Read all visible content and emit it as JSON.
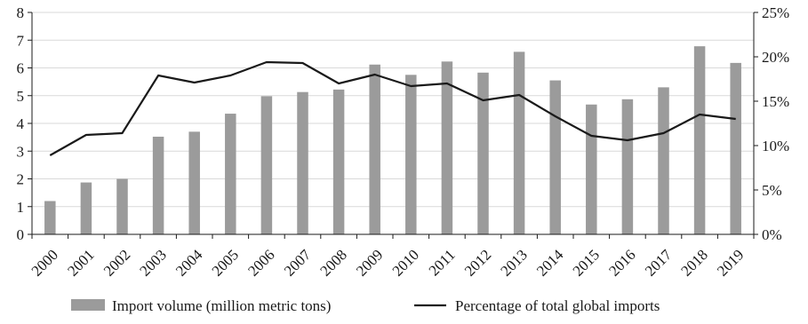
{
  "chart_data": {
    "type": "bar",
    "categories": [
      "2000",
      "2001",
      "2002",
      "2003",
      "2004",
      "2005",
      "2006",
      "2007",
      "2008",
      "2009",
      "2010",
      "2011",
      "2012",
      "2013",
      "2014",
      "2015",
      "2016",
      "2017",
      "2018",
      "2019"
    ],
    "series": [
      {
        "name": "Import volume (million metric tons)",
        "type": "bar",
        "axis": "left",
        "color": "#9b9b9b",
        "values": [
          1.2,
          1.87,
          2.0,
          3.52,
          3.7,
          4.35,
          4.98,
          5.13,
          5.22,
          6.12,
          5.75,
          6.23,
          5.83,
          6.58,
          5.55,
          4.68,
          4.87,
          5.3,
          6.78,
          6.18
        ]
      },
      {
        "name": "Percentage of total global imports",
        "type": "line",
        "axis": "right",
        "color": "#1a1a1a",
        "values": [
          8.9,
          11.2,
          11.4,
          17.9,
          17.1,
          17.9,
          19.4,
          19.3,
          17.0,
          18.0,
          16.7,
          17.0,
          15.1,
          15.7,
          13.3,
          11.1,
          10.6,
          11.4,
          13.5,
          13.0
        ]
      }
    ],
    "yleft": {
      "min": 0,
      "max": 8,
      "ticks": [
        0,
        1,
        2,
        3,
        4,
        5,
        6,
        7,
        8
      ],
      "tick_labels": [
        "0",
        "1",
        "2",
        "3",
        "4",
        "5",
        "6",
        "7",
        "8"
      ]
    },
    "yright": {
      "min": 0,
      "max": 25,
      "ticks": [
        0,
        5,
        10,
        15,
        20,
        25
      ],
      "tick_labels": [
        "0%",
        "5%",
        "10%",
        "15%",
        "20%",
        "25%"
      ]
    },
    "grid": "horizontal",
    "legend_position": "bottom"
  }
}
